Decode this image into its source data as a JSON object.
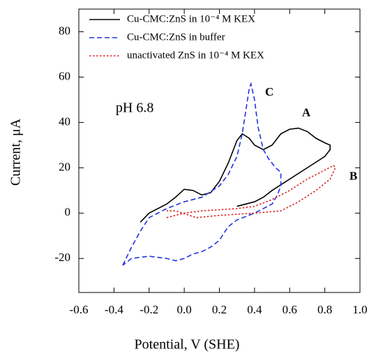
{
  "chart_data": {
    "type": "line",
    "xlabel": "Potential, V (SHE)",
    "ylabel": "Current,  μA",
    "xlim": [
      -0.6,
      1.0
    ],
    "xticks": [
      -0.6,
      -0.4,
      -0.2,
      {
        "value": 0,
        "label": "0.0"
      },
      0.2,
      0.4,
      0.6,
      0.8,
      {
        "value": 1,
        "label": "1.0"
      }
    ],
    "ylim": [
      -35,
      90
    ],
    "yticks": [
      -20,
      0,
      20,
      40,
      60,
      80
    ],
    "legend": "upper left",
    "annotations": [
      {
        "text": "pH 6.8",
        "x": -0.39,
        "y": 46
      },
      {
        "text": "A",
        "x": 0.67,
        "y": 44
      },
      {
        "text": "B",
        "x": 0.94,
        "y": 16
      },
      {
        "text": "C",
        "x": 0.46,
        "y": 53
      }
    ],
    "series": [
      {
        "name": "Cu-CMC:ZnS in 10⁻⁴ M KEX",
        "color": "#000000",
        "dash": "solid",
        "x": [
          -0.25,
          -0.2,
          -0.1,
          -0.05,
          0,
          0.05,
          0.1,
          0.15,
          0.2,
          0.25,
          0.3,
          0.33,
          0.37,
          0.4,
          0.45,
          0.5,
          0.55,
          0.6,
          0.65,
          0.7,
          0.75,
          0.8,
          0.83,
          0.83,
          0.8,
          0.7,
          0.6,
          0.5,
          0.45,
          0.4,
          0.3
        ],
        "values": [
          -4,
          0,
          4,
          7,
          10.5,
          10,
          8,
          9,
          14,
          22,
          32,
          35,
          33,
          30,
          28,
          30,
          35,
          37,
          37.5,
          36,
          33,
          31,
          30,
          28,
          25,
          20,
          15,
          10,
          7,
          5,
          3
        ]
      },
      {
        "name": "Cu-CMC:ZnS in buffer",
        "color": "#2233dd",
        "dash": "dashed",
        "x": [
          -0.35,
          -0.3,
          -0.25,
          -0.2,
          -0.1,
          0,
          0.1,
          0.2,
          0.25,
          0.3,
          0.33,
          0.35,
          0.37,
          0.38,
          0.4,
          0.42,
          0.45,
          0.48,
          0.52,
          0.55,
          0.55,
          0.53,
          0.5,
          0.4,
          0.3,
          0.25,
          0.2,
          0.15,
          0.1,
          0.05,
          0,
          -0.05,
          -0.1,
          -0.2,
          -0.3,
          -0.35
        ],
        "values": [
          -23,
          -15,
          -8,
          -2,
          2,
          5,
          7,
          12,
          17,
          25,
          35,
          45,
          55,
          57,
          50,
          38,
          28,
          24,
          20,
          18,
          12,
          8,
          4,
          0,
          -3,
          -6,
          -12,
          -15,
          -17,
          -18,
          -20,
          -21,
          -20,
          -19,
          -20,
          -23
        ]
      },
      {
        "name": "unactivated ZnS in 10⁻⁴ M KEX",
        "color": "#dd2222",
        "dash": "dotted",
        "x": [
          -0.1,
          0,
          0.1,
          0.2,
          0.3,
          0.4,
          0.5,
          0.6,
          0.7,
          0.8,
          0.85,
          0.86,
          0.83,
          0.75,
          0.65,
          0.55,
          0.4,
          0.2,
          0.07,
          -0.05,
          -0.1
        ],
        "values": [
          -2,
          0,
          1,
          1.5,
          2,
          3,
          6,
          10,
          15,
          19,
          21,
          20,
          15,
          10,
          5,
          1,
          0,
          -1,
          -2,
          1,
          1
        ]
      }
    ]
  }
}
